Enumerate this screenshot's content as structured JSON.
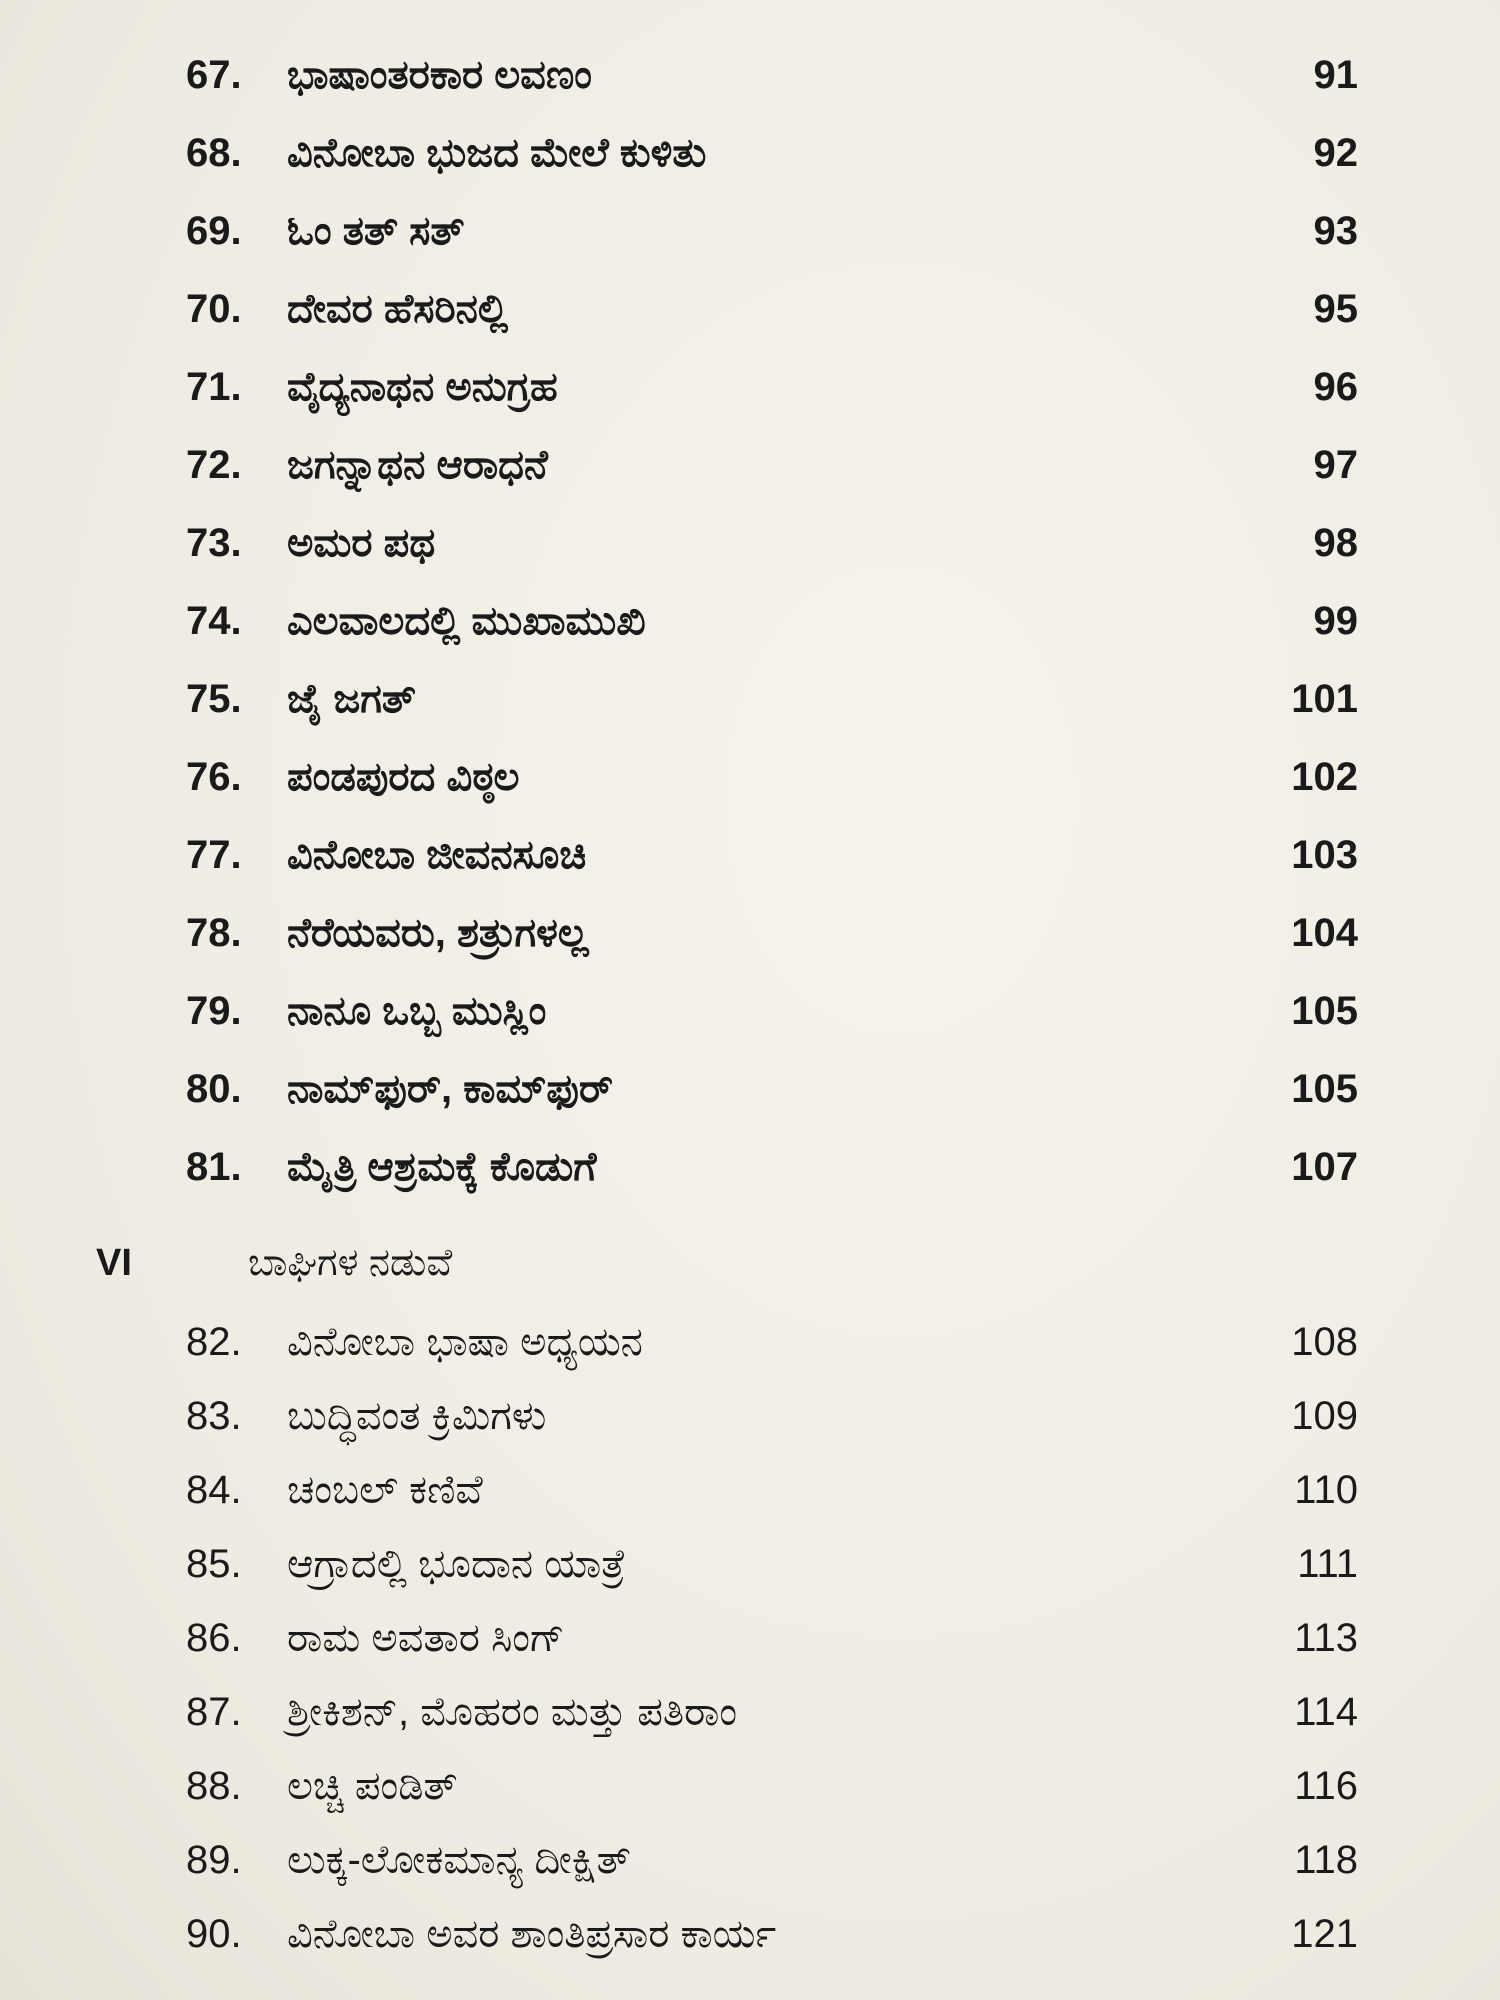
{
  "entries_part1": [
    {
      "num": "67.",
      "title": "ಭಾಷಾಂತರಕಾರ ಲವಣಂ",
      "page": "91"
    },
    {
      "num": "68.",
      "title": "ವಿನೋಬಾ ಭುಜದ ಮೇಲೆ ಕುಳಿತು",
      "page": "92"
    },
    {
      "num": "69.",
      "title": "ಓಂ ತತ್ ಸತ್",
      "page": "93"
    },
    {
      "num": "70.",
      "title": "ದೇವರ ಹೆಸರಿನಲ್ಲಿ",
      "page": "95"
    },
    {
      "num": "71.",
      "title": "ವೈದ್ಯನಾಥನ ಅನುಗ್ರಹ",
      "page": "96"
    },
    {
      "num": "72.",
      "title": "ಜಗನ್ನಾಥನ ಆರಾಧನೆ",
      "page": "97"
    },
    {
      "num": "73.",
      "title": "ಅಮರ ಪಥ",
      "page": "98"
    },
    {
      "num": "74.",
      "title": "ಎಲವಾಲದಲ್ಲಿ ಮುಖಾಮುಖಿ",
      "page": "99"
    },
    {
      "num": "75.",
      "title": "ಜೈ ಜಗತ್",
      "page": "101"
    },
    {
      "num": "76.",
      "title": "ಪಂಡಪುರದ ವಿಠ್ಠಲ",
      "page": "102"
    },
    {
      "num": "77.",
      "title": "ವಿನೋಬಾ ಜೀವನಸೂಚಿ",
      "page": "103"
    },
    {
      "num": "78.",
      "title": "ನೆರೆಯವರು, ಶತ್ರುಗಳಲ್ಲ",
      "page": "104"
    },
    {
      "num": "79.",
      "title": "ನಾನೂ ಒಬ್ಬ ಮುಸ್ಲಿಂ",
      "page": "105"
    },
    {
      "num": "80.",
      "title": "ನಾಮ್‌ಫುರ್, ಕಾಮ್‌ಫುರ್",
      "page": "105"
    },
    {
      "num": "81.",
      "title": "ಮೈತ್ರಿ ಆಶ್ರಮಕ್ಕೆ ಕೊಡುಗೆ",
      "page": "107"
    }
  ],
  "section": {
    "roman": "VI",
    "title": "ಬಾಘಿಗಳ ನಡುವೆ"
  },
  "entries_part2": [
    {
      "num": "82.",
      "title": "ವಿನೋಬಾ ಭಾಷಾ ಅಧ್ಯಯನ",
      "page": "108"
    },
    {
      "num": "83.",
      "title": "ಬುದ್ಧಿವಂತ ಕ್ರಿಮಿಗಳು",
      "page": "109"
    },
    {
      "num": "84.",
      "title": "ಚಂಬಲ್ ಕಣಿವೆ",
      "page": "110"
    },
    {
      "num": "85.",
      "title": "ಆಗ್ರಾದಲ್ಲಿ ಭೂದಾನ ಯಾತ್ರೆ",
      "page": "111"
    },
    {
      "num": "86.",
      "title": "ರಾಮ ಅವತಾರ ಸಿಂಗ್",
      "page": "113"
    },
    {
      "num": "87.",
      "title": "ಶ್ರೀಕಿಶನ್, ಮೊಹರಂ ಮತ್ತು ಪತಿರಾಂ",
      "page": "114"
    },
    {
      "num": "88.",
      "title": "ಲಚ್ಚಿ ಪಂಡಿತ್",
      "page": "116"
    },
    {
      "num": "89.",
      "title": "ಲುಕ್ಕ-ಲೋಕಮಾನ್ಯ ದೀಕ್ಷಿತ್",
      "page": "118"
    },
    {
      "num": "90.",
      "title": "ವಿನೋಬಾ ಅವರ ಶಾಂತಿಪ್ರಸಾರ ಕಾರ್ಯ",
      "page": "121"
    }
  ]
}
